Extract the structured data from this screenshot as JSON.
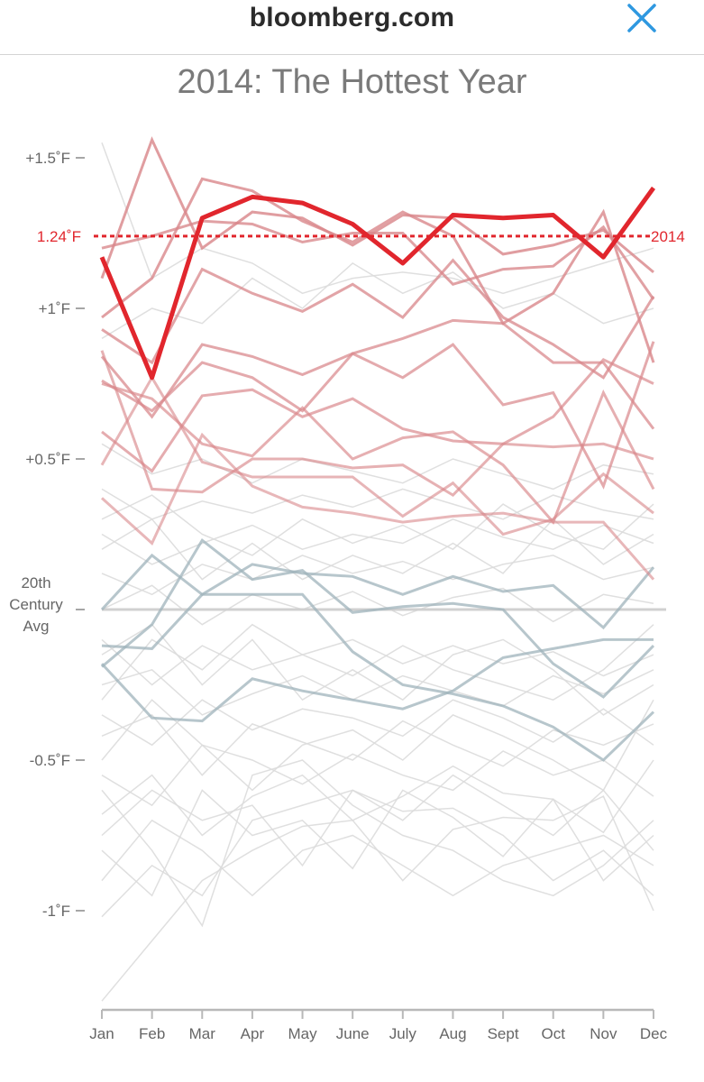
{
  "header": {
    "site": "bloomberg.com",
    "close_icon": "close-x-icon"
  },
  "colors": {
    "highlight": "#e1262d",
    "warm": "#d9878b",
    "cool": "#9fb3bb",
    "background_line": "#dcdcdc",
    "axis": "#b8b8b8",
    "text": "#666666",
    "close": "#2f98e0"
  },
  "chart_data": {
    "type": "line",
    "title": "2014: The Hottest Year",
    "xlabel": "",
    "ylabel": "",
    "y_unit": "°F departure from 20th century average",
    "ylim": [
      -1.3,
      1.6
    ],
    "categories": [
      "Jan",
      "Feb",
      "Mar",
      "Apr",
      "May",
      "June",
      "July",
      "Aug",
      "Sept",
      "Oct",
      "Nov",
      "Dec"
    ],
    "y_ticks": [
      {
        "value": 1.5,
        "label": "+1.5˚F"
      },
      {
        "value": 1.0,
        "label": "+1˚F"
      },
      {
        "value": 0.5,
        "label": "+0.5˚F"
      },
      {
        "value": 0.0,
        "label": "20th Century Avg"
      },
      {
        "value": -0.5,
        "label": "-0.5˚F"
      },
      {
        "value": -1.0,
        "label": "-1˚F"
      }
    ],
    "reference_line": {
      "value": 1.24,
      "label": "1.24˚F",
      "end_label": "2014"
    },
    "highlight_series": {
      "name": "2014",
      "values": [
        1.17,
        0.77,
        1.3,
        1.37,
        1.35,
        1.28,
        1.15,
        1.31,
        1.3,
        1.31,
        1.17,
        1.4
      ]
    },
    "warm_series": [
      {
        "values": [
          1.1,
          1.56,
          1.2,
          1.32,
          1.3,
          1.21,
          1.31,
          1.3,
          1.18,
          1.21,
          1.26,
          1.12
        ]
      },
      {
        "values": [
          0.97,
          1.1,
          1.43,
          1.39,
          1.29,
          1.22,
          1.32,
          1.24,
          0.95,
          1.05,
          1.32,
          0.82
        ]
      },
      {
        "values": [
          1.2,
          1.24,
          1.29,
          1.28,
          1.22,
          1.25,
          1.25,
          1.08,
          1.13,
          1.14,
          1.27,
          1.03
        ]
      },
      {
        "values": [
          0.93,
          0.82,
          1.13,
          1.05,
          0.99,
          1.08,
          0.97,
          1.16,
          0.97,
          0.88,
          0.77,
          1.04
        ]
      },
      {
        "values": [
          0.84,
          0.64,
          0.88,
          0.84,
          0.78,
          0.85,
          0.9,
          0.96,
          0.95,
          0.82,
          0.82,
          0.6
        ]
      },
      {
        "values": [
          0.76,
          0.66,
          0.82,
          0.77,
          0.66,
          0.85,
          0.77,
          0.88,
          0.68,
          0.72,
          0.41,
          0.89
        ]
      },
      {
        "values": [
          0.59,
          0.46,
          0.71,
          0.73,
          0.64,
          0.7,
          0.6,
          0.56,
          0.55,
          0.64,
          0.83,
          0.75
        ]
      },
      {
        "values": [
          0.75,
          0.7,
          0.55,
          0.51,
          0.67,
          0.5,
          0.57,
          0.59,
          0.48,
          0.29,
          0.72,
          0.4
        ]
      },
      {
        "values": [
          0.86,
          0.4,
          0.39,
          0.5,
          0.5,
          0.47,
          0.48,
          0.38,
          0.55,
          0.54,
          0.55,
          0.5
        ]
      },
      {
        "values": [
          0.48,
          0.77,
          0.49,
          0.44,
          0.44,
          0.44,
          0.31,
          0.42,
          0.25,
          0.3,
          0.45,
          0.32
        ]
      },
      {
        "values": [
          0.37,
          0.22,
          0.58,
          0.41,
          0.34,
          0.32,
          0.29,
          0.31,
          0.32,
          0.29,
          0.29,
          0.1
        ]
      }
    ],
    "cool_series": [
      {
        "values": [
          0.0,
          0.18,
          0.05,
          0.15,
          0.12,
          0.11,
          0.05,
          0.11,
          0.06,
          0.08,
          -0.06,
          0.14
        ]
      },
      {
        "values": [
          -0.12,
          -0.13,
          0.05,
          0.05,
          0.05,
          -0.14,
          -0.25,
          -0.28,
          -0.32,
          -0.39,
          -0.5,
          -0.34
        ]
      },
      {
        "values": [
          -0.18,
          -0.36,
          -0.37,
          -0.23,
          -0.27,
          -0.3,
          -0.33,
          -0.27,
          -0.16,
          -0.13,
          -0.1,
          -0.1
        ]
      },
      {
        "values": [
          -0.19,
          -0.05,
          0.23,
          0.1,
          0.13,
          -0.01,
          0.01,
          0.02,
          0.0,
          -0.18,
          -0.29,
          -0.12
        ]
      }
    ],
    "background_series": [
      {
        "values": [
          -1.3,
          -1.1,
          -0.9,
          -0.8,
          -0.72,
          -0.7,
          -0.9,
          -0.73,
          -0.69,
          -0.7,
          -0.62,
          -1.0
        ]
      },
      {
        "values": [
          -1.02,
          -0.85,
          -0.95,
          -0.7,
          -0.65,
          -0.6,
          -0.67,
          -0.66,
          -0.75,
          -0.9,
          -0.8,
          -0.95
        ]
      },
      {
        "values": [
          -0.8,
          -0.95,
          -0.6,
          -0.75,
          -0.7,
          -0.86,
          -0.6,
          -0.69,
          -0.82,
          -0.63,
          -0.9,
          -0.75
        ]
      },
      {
        "values": [
          -0.68,
          -0.55,
          -0.75,
          -0.62,
          -0.55,
          -0.7,
          -0.62,
          -0.52,
          -0.61,
          -0.63,
          -0.74,
          -0.5
        ]
      },
      {
        "values": [
          -0.55,
          -0.65,
          -0.45,
          -0.5,
          -0.58,
          -0.48,
          -0.55,
          -0.6,
          -0.47,
          -0.55,
          -0.5,
          -0.62
        ]
      },
      {
        "values": [
          -0.42,
          -0.35,
          -0.55,
          -0.38,
          -0.44,
          -0.5,
          -0.37,
          -0.45,
          -0.52,
          -0.4,
          -0.45,
          -0.38
        ]
      },
      {
        "values": [
          -0.35,
          -0.45,
          -0.3,
          -0.4,
          -0.33,
          -0.36,
          -0.42,
          -0.3,
          -0.36,
          -0.44,
          -0.33,
          -0.45
        ]
      },
      {
        "values": [
          -0.25,
          -0.2,
          -0.35,
          -0.28,
          -0.22,
          -0.3,
          -0.22,
          -0.27,
          -0.32,
          -0.22,
          -0.28,
          -0.2
        ]
      },
      {
        "values": [
          -0.1,
          -0.25,
          -0.12,
          -0.2,
          -0.15,
          -0.1,
          -0.18,
          -0.12,
          -0.18,
          -0.14,
          -0.22,
          -0.15
        ]
      },
      {
        "values": [
          0.0,
          0.08,
          -0.05,
          0.05,
          0.0,
          0.06,
          -0.02,
          0.04,
          0.07,
          -0.04,
          0.05,
          0.02
        ]
      },
      {
        "values": [
          0.12,
          0.05,
          0.15,
          0.1,
          0.18,
          0.12,
          0.16,
          0.1,
          0.15,
          0.18,
          0.1,
          0.14
        ]
      },
      {
        "values": [
          0.25,
          0.15,
          0.22,
          0.28,
          0.2,
          0.25,
          0.22,
          0.3,
          0.24,
          0.2,
          0.28,
          0.22
        ]
      },
      {
        "values": [
          0.4,
          0.3,
          0.36,
          0.32,
          0.38,
          0.34,
          0.4,
          0.35,
          0.3,
          0.38,
          0.33,
          0.3
        ]
      },
      {
        "values": [
          0.55,
          0.45,
          0.5,
          0.42,
          0.5,
          0.46,
          0.42,
          0.5,
          0.45,
          0.4,
          0.48,
          0.45
        ]
      },
      {
        "values": [
          -0.6,
          -0.8,
          -1.05,
          -0.55,
          -0.5,
          -0.65,
          -0.75,
          -0.8,
          -0.9,
          -0.95,
          -0.85,
          -0.7
        ]
      },
      {
        "values": [
          -0.9,
          -0.7,
          -0.8,
          -0.95,
          -0.8,
          -0.75,
          -0.85,
          -0.95,
          -0.85,
          -0.8,
          -0.75,
          -0.85
        ]
      },
      {
        "values": [
          -0.3,
          -0.1,
          -0.2,
          -0.05,
          -0.15,
          -0.22,
          -0.12,
          -0.2,
          -0.25,
          -0.3,
          -0.2,
          -0.05
        ]
      },
      {
        "values": [
          0.3,
          0.38,
          0.25,
          0.18,
          0.3,
          0.22,
          0.28,
          0.2,
          0.35,
          0.25,
          0.2,
          0.35
        ]
      },
      {
        "values": [
          -0.5,
          -0.3,
          -0.45,
          -0.6,
          -0.45,
          -0.4,
          -0.5,
          -0.35,
          -0.42,
          -0.5,
          -0.6,
          -0.3
        ]
      },
      {
        "values": [
          0.2,
          0.3,
          0.1,
          0.22,
          0.1,
          0.18,
          0.12,
          0.22,
          0.12,
          0.3,
          0.15,
          0.25
        ]
      },
      {
        "values": [
          -0.15,
          -0.05,
          -0.25,
          -0.1,
          -0.3,
          -0.2,
          -0.3,
          -0.15,
          -0.1,
          -0.2,
          -0.35,
          -0.25
        ]
      },
      {
        "values": [
          1.55,
          1.1,
          1.2,
          1.15,
          1.05,
          1.1,
          1.12,
          1.1,
          1.05,
          1.1,
          1.15,
          1.2
        ]
      },
      {
        "values": [
          0.9,
          1.0,
          0.95,
          1.1,
          1.0,
          1.15,
          1.05,
          1.12,
          1.0,
          1.05,
          0.95,
          1.0
        ]
      },
      {
        "values": [
          -0.75,
          -0.6,
          -0.7,
          -0.65,
          -0.85,
          -0.6,
          -0.7,
          -0.55,
          -0.65,
          -0.75,
          -0.6,
          -0.8
        ]
      }
    ]
  }
}
